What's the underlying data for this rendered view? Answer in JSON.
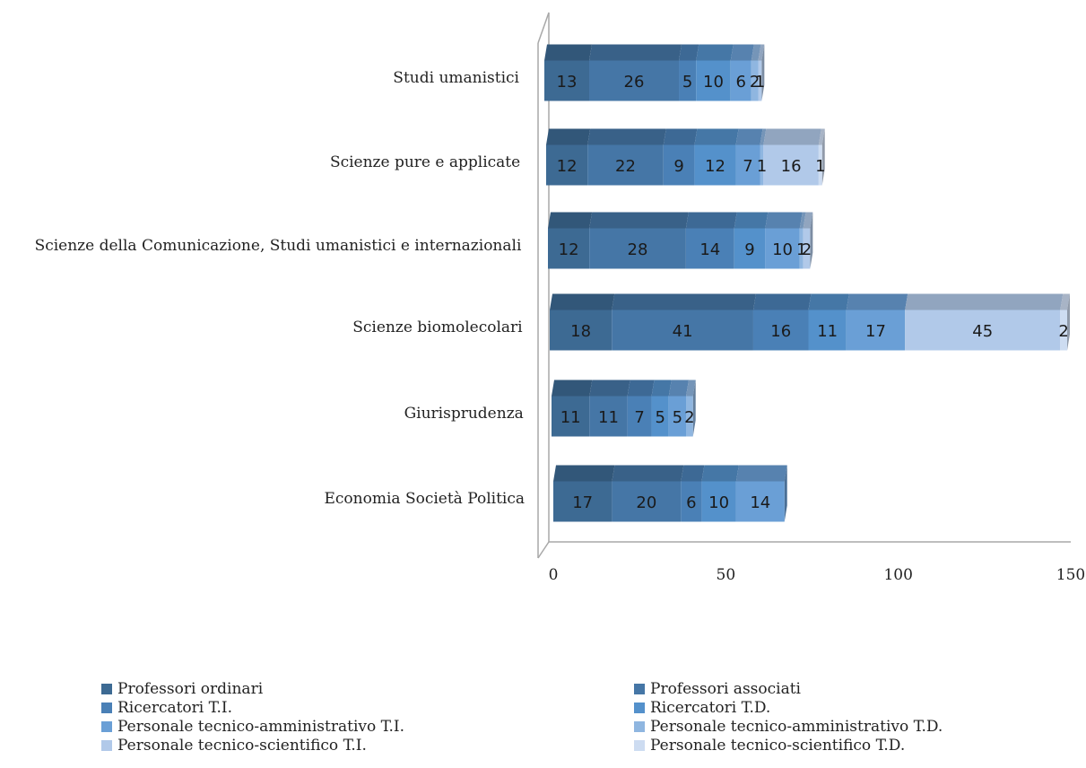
{
  "chart_data": {
    "type": "bar",
    "orientation": "horizontal",
    "stacked": true,
    "categories": [
      "Economia Società Politica",
      "Giurisprudenza",
      "Scienze biomolecolari",
      "Scienze della Comunicazione, Studi umanistici e internazionali",
      "Scienze pure e applicate",
      "Studi umanistici"
    ],
    "xlim": [
      0,
      150
    ],
    "xticks": [
      "0",
      "50",
      "100",
      "150"
    ],
    "legend_position": "bottom",
    "series": [
      {
        "name": "Professori ordinari",
        "color": "#3d6a93",
        "values": [
          17,
          11,
          18,
          12,
          12,
          13
        ]
      },
      {
        "name": "Professori associati",
        "color": "#4576a6",
        "values": [
          20,
          11,
          41,
          28,
          22,
          26
        ]
      },
      {
        "name": "Ricercatori T.I.",
        "color": "#4a80b6",
        "values": [
          6,
          7,
          16,
          14,
          9,
          5
        ]
      },
      {
        "name": "Ricercatori T.D.",
        "color": "#5491cb",
        "values": [
          10,
          5,
          11,
          9,
          12,
          10
        ]
      },
      {
        "name": "Personale tecnico-amministrativo T.I.",
        "color": "#6a9fd6",
        "values": [
          14,
          5,
          17,
          10,
          7,
          6
        ]
      },
      {
        "name": "Personale tecnico-amministrativo T.D.",
        "color": "#8fb6e0",
        "values": [
          0,
          2,
          0,
          1,
          1,
          2
        ]
      },
      {
        "name": "Personale tecnico-scientifico T.I.",
        "color": "#b1c9e9",
        "values": [
          0,
          0,
          45,
          2,
          16,
          1
        ]
      },
      {
        "name": "Personale tecnico-scientifico T.D.",
        "color": "#cddcf1",
        "values": [
          0,
          0,
          2,
          0,
          1,
          0
        ]
      }
    ]
  }
}
